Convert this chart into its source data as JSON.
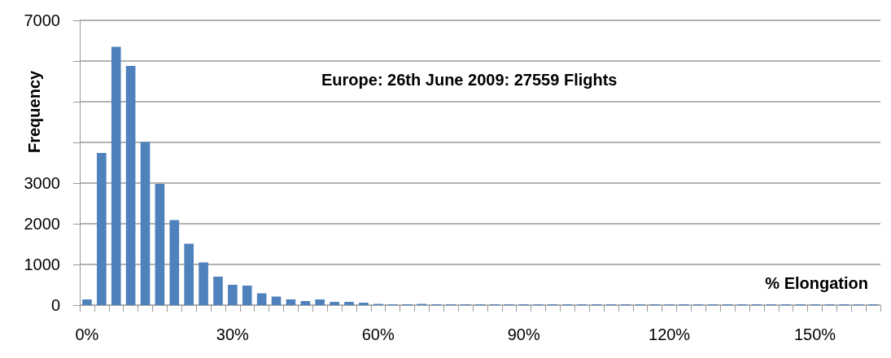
{
  "chart_data": {
    "type": "bar",
    "title": "Europe: 26th June 2009: 27559 Flights",
    "xlabel": "% Elongation",
    "ylabel": "Frequency",
    "categories": [
      "0%",
      null,
      null,
      null,
      null,
      null,
      null,
      null,
      null,
      null,
      "30%",
      null,
      null,
      null,
      null,
      null,
      null,
      null,
      null,
      null,
      "60%",
      null,
      null,
      null,
      null,
      null,
      null,
      null,
      null,
      null,
      "90%",
      null,
      null,
      null,
      null,
      null,
      null,
      null,
      null,
      null,
      "120%",
      null,
      null,
      null,
      null,
      null,
      null,
      null,
      null,
      null,
      "150%",
      null,
      null,
      null,
      null
    ],
    "values": [
      140,
      3740,
      6350,
      5880,
      4010,
      2980,
      2090,
      1510,
      1050,
      700,
      500,
      480,
      290,
      210,
      140,
      100,
      140,
      80,
      80,
      60,
      30,
      20,
      20,
      30,
      20,
      20,
      20,
      20,
      20,
      20,
      20,
      20,
      20,
      20,
      20,
      20,
      20,
      20,
      20,
      20,
      20,
      20,
      20,
      20,
      20,
      20,
      20,
      20,
      20,
      20,
      20,
      20,
      20,
      20,
      20
    ],
    "color": "#4f81bd",
    "ylim": [
      0,
      7000
    ],
    "yticks": [
      0,
      1000,
      2000,
      3000,
      {
        "value": 4000,
        "label": null
      },
      {
        "value": 5000,
        "label": null
      },
      {
        "value": 6000,
        "label": null
      },
      7000
    ],
    "grid": "y"
  }
}
